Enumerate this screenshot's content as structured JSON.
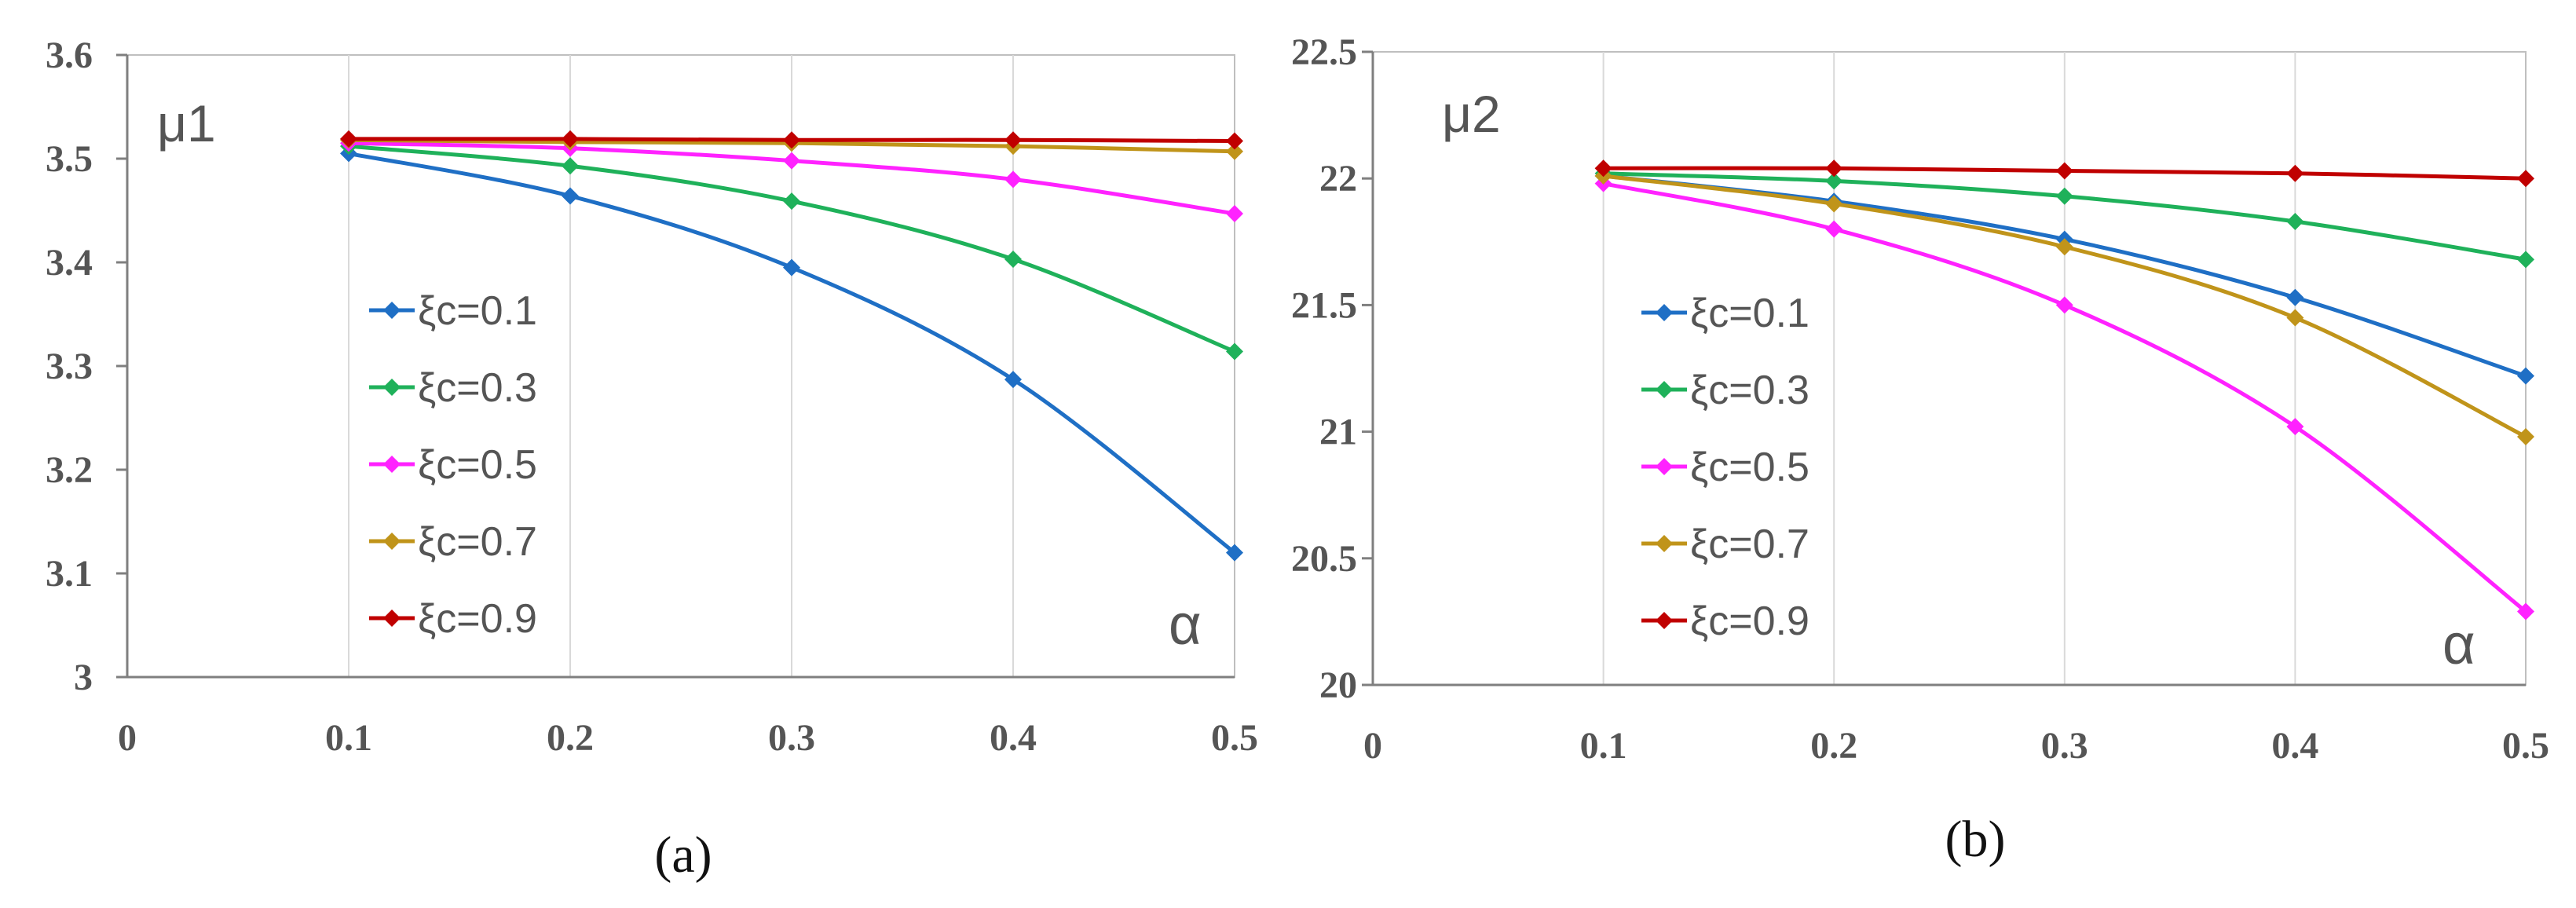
{
  "chart_data": [
    {
      "type": "line",
      "panel_label": "(a)",
      "ylabel": "μ1",
      "xlabel": "α",
      "xlim": [
        0,
        0.5
      ],
      "ylim": [
        3,
        3.6
      ],
      "x_ticks": [
        "0",
        "0.1",
        "0.2",
        "0.3",
        "0.4",
        "0.5"
      ],
      "y_ticks": [
        "3",
        "3.1",
        "3.2",
        "3.3",
        "3.4",
        "3.5",
        "3.6"
      ],
      "gridlines": "vertical",
      "legend_position": "center-left",
      "x": [
        0.1,
        0.2,
        0.3,
        0.4,
        0.5
      ],
      "series": [
        {
          "name": "ξc=0.1",
          "color": "#1f6fc5",
          "values": [
            3.505,
            3.464,
            3.395,
            3.287,
            3.12
          ]
        },
        {
          "name": "ξc=0.3",
          "color": "#1fb15a",
          "values": [
            3.512,
            3.493,
            3.459,
            3.403,
            3.314
          ]
        },
        {
          "name": "ξc=0.5",
          "color": "#ff22ff",
          "values": [
            3.515,
            3.51,
            3.498,
            3.48,
            3.447
          ]
        },
        {
          "name": "ξc=0.7",
          "color": "#c0941a",
          "values": [
            3.518,
            3.516,
            3.515,
            3.512,
            3.507
          ]
        },
        {
          "name": "ξc=0.9",
          "color": "#c00000",
          "values": [
            3.519,
            3.519,
            3.518,
            3.518,
            3.517
          ]
        }
      ]
    },
    {
      "type": "line",
      "panel_label": "(b)",
      "ylabel": "μ2",
      "xlabel": "α",
      "xlim": [
        0,
        0.5
      ],
      "ylim": [
        20,
        22.5
      ],
      "x_ticks": [
        "0",
        "0.1",
        "0.2",
        "0.3",
        "0.4",
        "0.5"
      ],
      "y_ticks": [
        "20",
        "20.5",
        "21",
        "21.5",
        "22",
        "22.5"
      ],
      "gridlines": "vertical",
      "legend_position": "center-left",
      "x": [
        0.1,
        0.2,
        0.3,
        0.4,
        0.5
      ],
      "series": [
        {
          "name": "ξc=0.1",
          "color": "#1f6fc5",
          "values": [
            22.01,
            21.91,
            21.76,
            21.53,
            21.22
          ]
        },
        {
          "name": "ξc=0.3",
          "color": "#1fb15a",
          "values": [
            22.02,
            21.99,
            21.93,
            21.83,
            21.68
          ]
        },
        {
          "name": "ξc=0.5",
          "color": "#ff22ff",
          "values": [
            21.98,
            21.8,
            21.5,
            21.02,
            20.29
          ]
        },
        {
          "name": "ξc=0.7",
          "color": "#c0941a",
          "values": [
            22.01,
            21.9,
            21.73,
            21.45,
            20.98
          ]
        },
        {
          "name": "ξc=0.9",
          "color": "#c00000",
          "values": [
            22.04,
            22.04,
            22.03,
            22.02,
            22.0
          ]
        }
      ]
    }
  ]
}
